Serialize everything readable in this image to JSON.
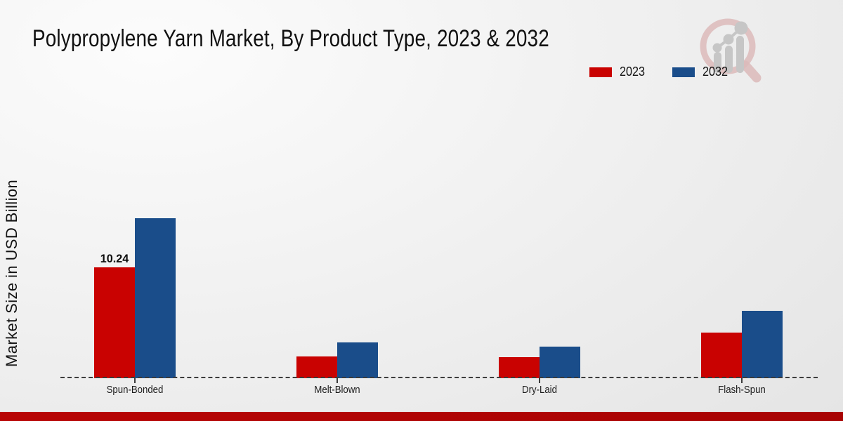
{
  "title": "Polypropylene Yarn Market, By Product Type, 2023 & 2032",
  "y_axis_label": "Market Size in USD Billion",
  "legend": {
    "items": [
      {
        "label": "2023",
        "color": "#c90201"
      },
      {
        "label": "2032",
        "color": "#1a4d8a"
      }
    ]
  },
  "colors": {
    "series_2023": "#c90201",
    "series_2032": "#1a4d8a",
    "footer_band": "#b30505",
    "baseline": "#3c3c3c",
    "logo_ring": "#dcbaba",
    "logo_gray": "#c6c6c6"
  },
  "icons": {
    "logo": "magnifier-bar-chart-watermark-icon"
  },
  "chart_data": {
    "type": "bar",
    "title": "Polypropylene Yarn Market, By Product Type, 2023 & 2032",
    "xlabel": "",
    "ylabel": "Market Size in USD Billion",
    "categories": [
      "Spun-Bonded",
      "Melt-Blown",
      "Dry-Laid",
      "Flash-Spun"
    ],
    "series": [
      {
        "name": "2023",
        "color": "#c90201",
        "values": [
          10.24,
          2.0,
          1.95,
          4.2
        ]
      },
      {
        "name": "2032",
        "color": "#1a4d8a",
        "values": [
          14.8,
          3.3,
          2.9,
          6.2
        ]
      }
    ],
    "ylim": [
      0,
      16
    ],
    "grid": false,
    "legend_position": "top-right",
    "baseline_style": "dashed",
    "data_labels": [
      {
        "series": "2023",
        "category": "Spun-Bonded",
        "text": "10.24"
      }
    ]
  }
}
